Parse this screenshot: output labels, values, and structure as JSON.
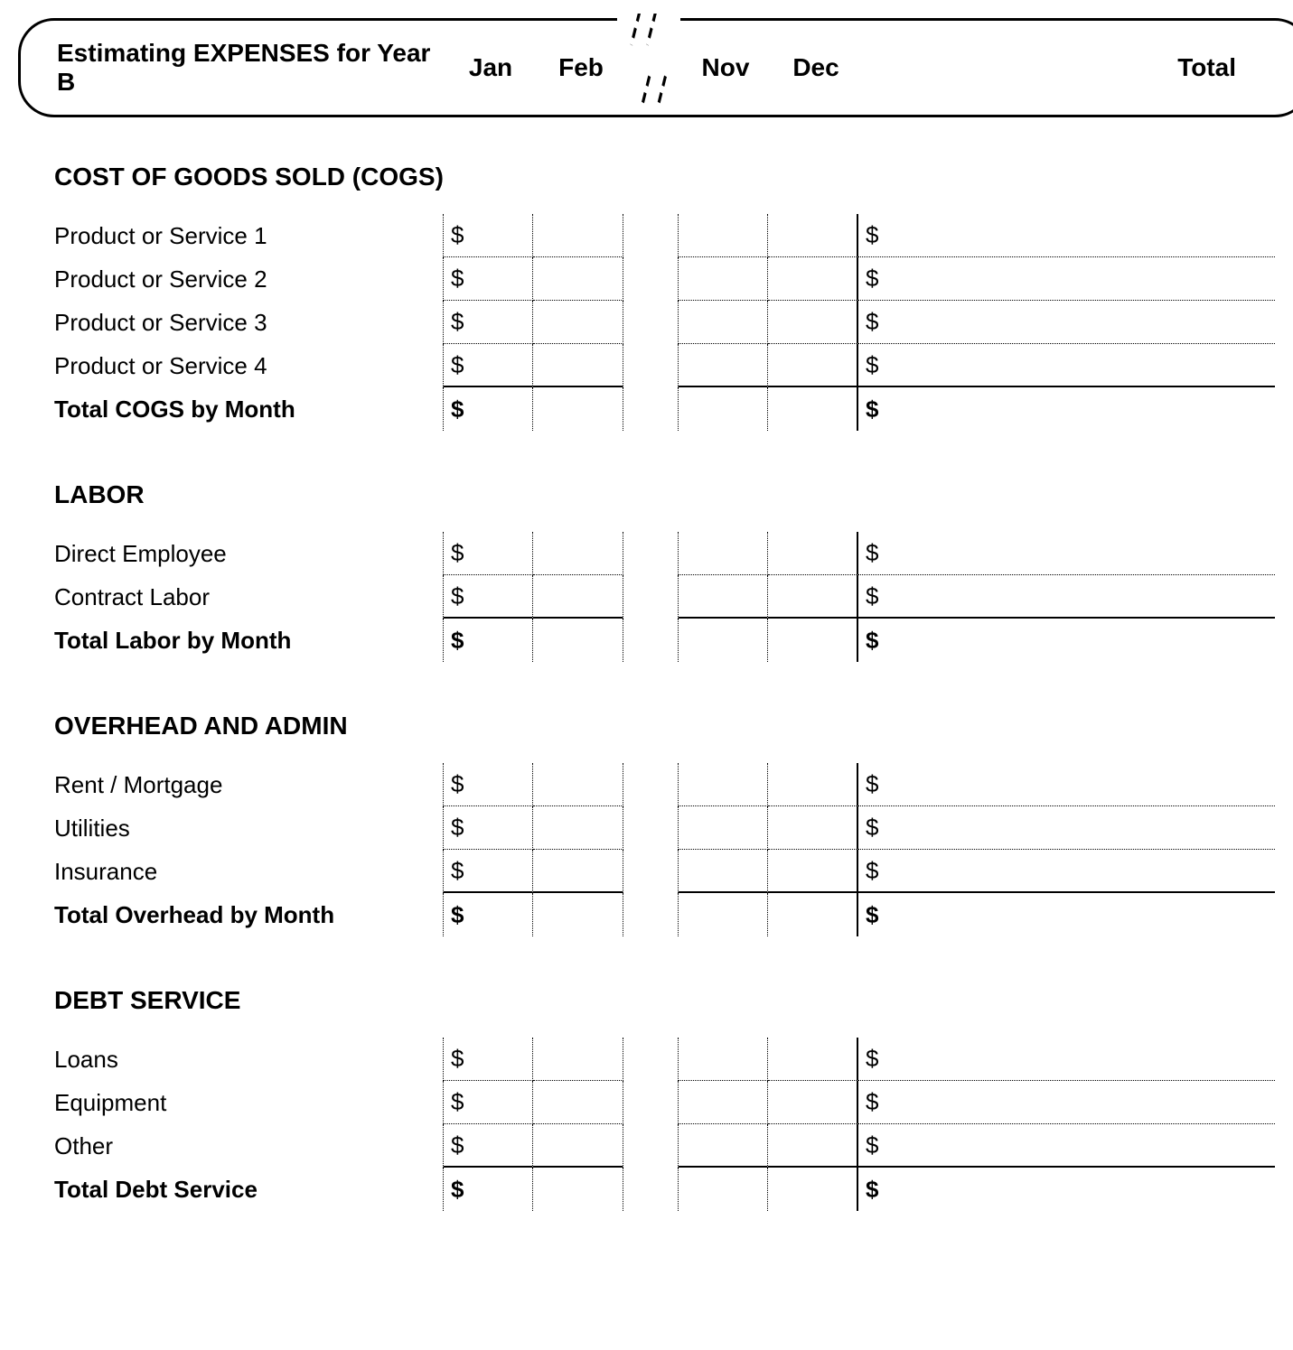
{
  "header": {
    "title": "Estimating EXPENSES for Year B",
    "columns": {
      "jan": "Jan",
      "feb": "Feb",
      "nov": "Nov",
      "dec": "Dec",
      "total": "Total"
    }
  },
  "currency_symbol": "$",
  "sections": [
    {
      "title": "COST OF GOODS SOLD (COGS)",
      "rows": [
        {
          "label": "Product or Service 1"
        },
        {
          "label": "Product or Service 2"
        },
        {
          "label": "Product or Service 3"
        },
        {
          "label": "Product or Service 4"
        }
      ],
      "total_label": "Total COGS by Month"
    },
    {
      "title": "LABOR",
      "rows": [
        {
          "label": "Direct Employee"
        },
        {
          "label": "Contract Labor"
        }
      ],
      "total_label": "Total Labor by Month"
    },
    {
      "title": "OVERHEAD AND ADMIN",
      "rows": [
        {
          "label": "Rent / Mortgage"
        },
        {
          "label": "Utilities"
        },
        {
          "label": "Insurance"
        }
      ],
      "total_label": "Total Overhead by Month"
    },
    {
      "title": "DEBT SERVICE",
      "rows": [
        {
          "label": "Loans"
        },
        {
          "label": "Equipment"
        },
        {
          "label": "Other"
        }
      ],
      "total_label": "Total Debt Service"
    }
  ]
}
